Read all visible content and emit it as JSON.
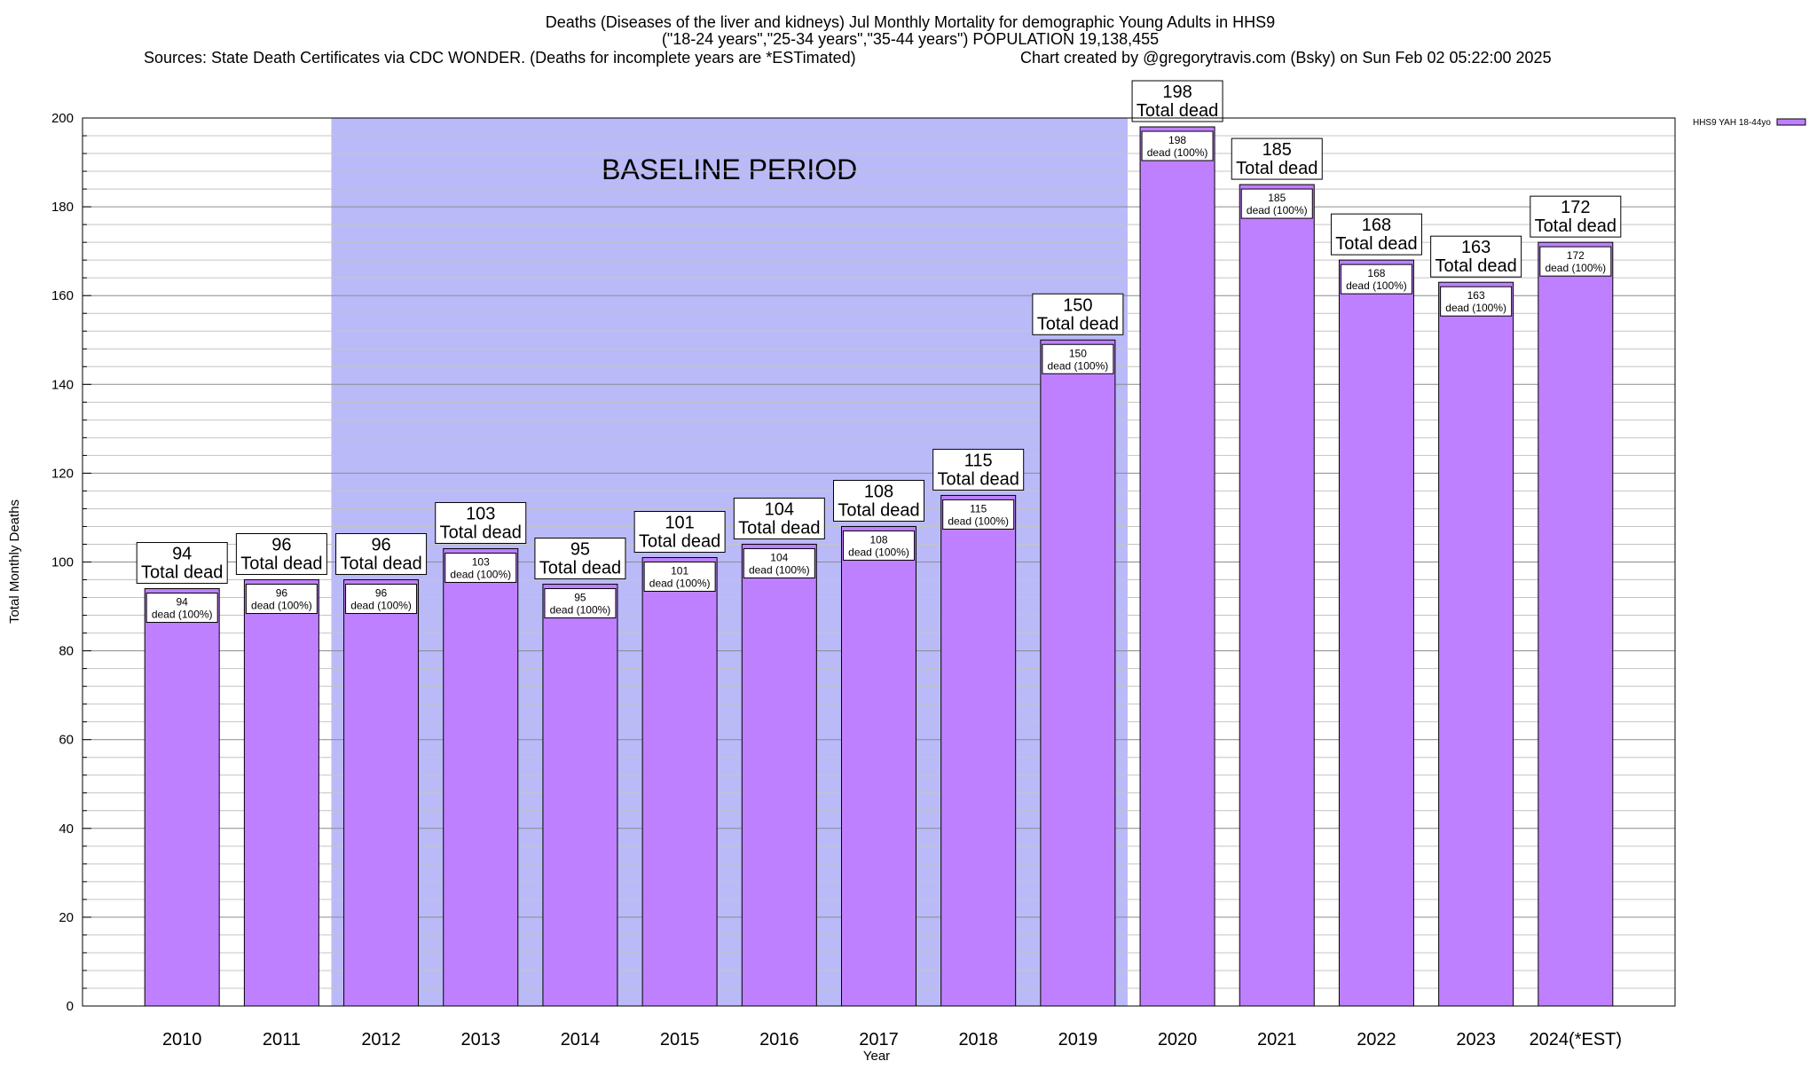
{
  "chart_data": {
    "type": "bar",
    "title_lines": [
      "Deaths (Diseases of the liver and kidneys) Jul Monthly Mortality for demographic Young Adults in HHS9",
      "(\"18-24 years\",\"25-34 years\",\"35-44 years\") POPULATION 19,138,455"
    ],
    "sources_text": "Sources: State Death Certificates via CDC WONDER. (Deaths for incomplete years are *ESTimated)",
    "credit_text": "Chart created by @gregorytravis.com (Bsky) on Sun Feb 02 05:22:00 2025",
    "xlabel": "Year",
    "ylabel": "Total Monthly Deaths",
    "ylim": [
      0,
      200
    ],
    "y_ticks": [
      0,
      20,
      40,
      60,
      80,
      100,
      120,
      140,
      160,
      180,
      200
    ],
    "grid": true,
    "categories": [
      "2010",
      "2011",
      "2012",
      "2013",
      "2014",
      "2015",
      "2016",
      "2017",
      "2018",
      "2019",
      "2020",
      "2021",
      "2022",
      "2023",
      "2024(*EST)"
    ],
    "series": [
      {
        "name": "HHS9 YAH 18-44yo",
        "color": "#bf80ff",
        "values": [
          94,
          96,
          96,
          103,
          95,
          101,
          104,
          108,
          115,
          150,
          198,
          185,
          168,
          163,
          172
        ]
      }
    ],
    "total_label_suffix": "Total dead",
    "inner_label_suffix": "dead (100%)",
    "baseline": {
      "label": "BASELINE PERIOD",
      "start": "2012",
      "end": "2019",
      "color": "#babaf8"
    },
    "legend_position": "top-right"
  }
}
